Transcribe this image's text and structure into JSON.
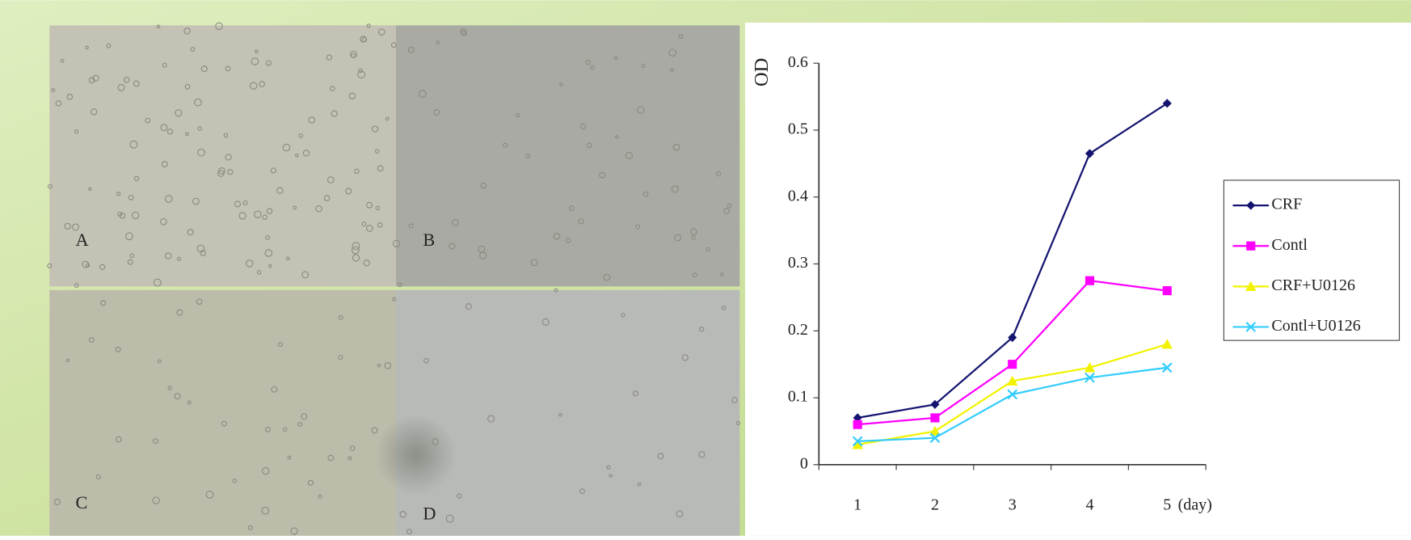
{
  "panels": [
    "A",
    "B",
    "C",
    "D"
  ],
  "chart_data": {
    "type": "line",
    "y_label": "OD",
    "x_label": "(day)",
    "categories": [
      "1",
      "2",
      "3",
      "4",
      "5"
    ],
    "series": [
      {
        "name": "CRF",
        "color": "#141470",
        "marker": "diamond",
        "values": [
          0.07,
          0.09,
          0.19,
          0.465,
          0.54
        ]
      },
      {
        "name": "Contl",
        "color": "#ff00ff",
        "marker": "square",
        "values": [
          0.06,
          0.07,
          0.15,
          0.275,
          0.26
        ]
      },
      {
        "name": "CRF+U0126",
        "color": "#f2f200",
        "marker": "triangle",
        "values": [
          0.03,
          0.05,
          0.125,
          0.145,
          0.18
        ]
      },
      {
        "name": "Contl+U0126",
        "color": "#33ccff",
        "marker": "cross",
        "values": [
          0.035,
          0.04,
          0.105,
          0.13,
          0.145
        ]
      }
    ],
    "ylim": [
      0,
      0.6
    ],
    "yticks": [
      0,
      0.1,
      0.2,
      0.3,
      0.4,
      0.5,
      0.6
    ],
    "legend": "right"
  }
}
